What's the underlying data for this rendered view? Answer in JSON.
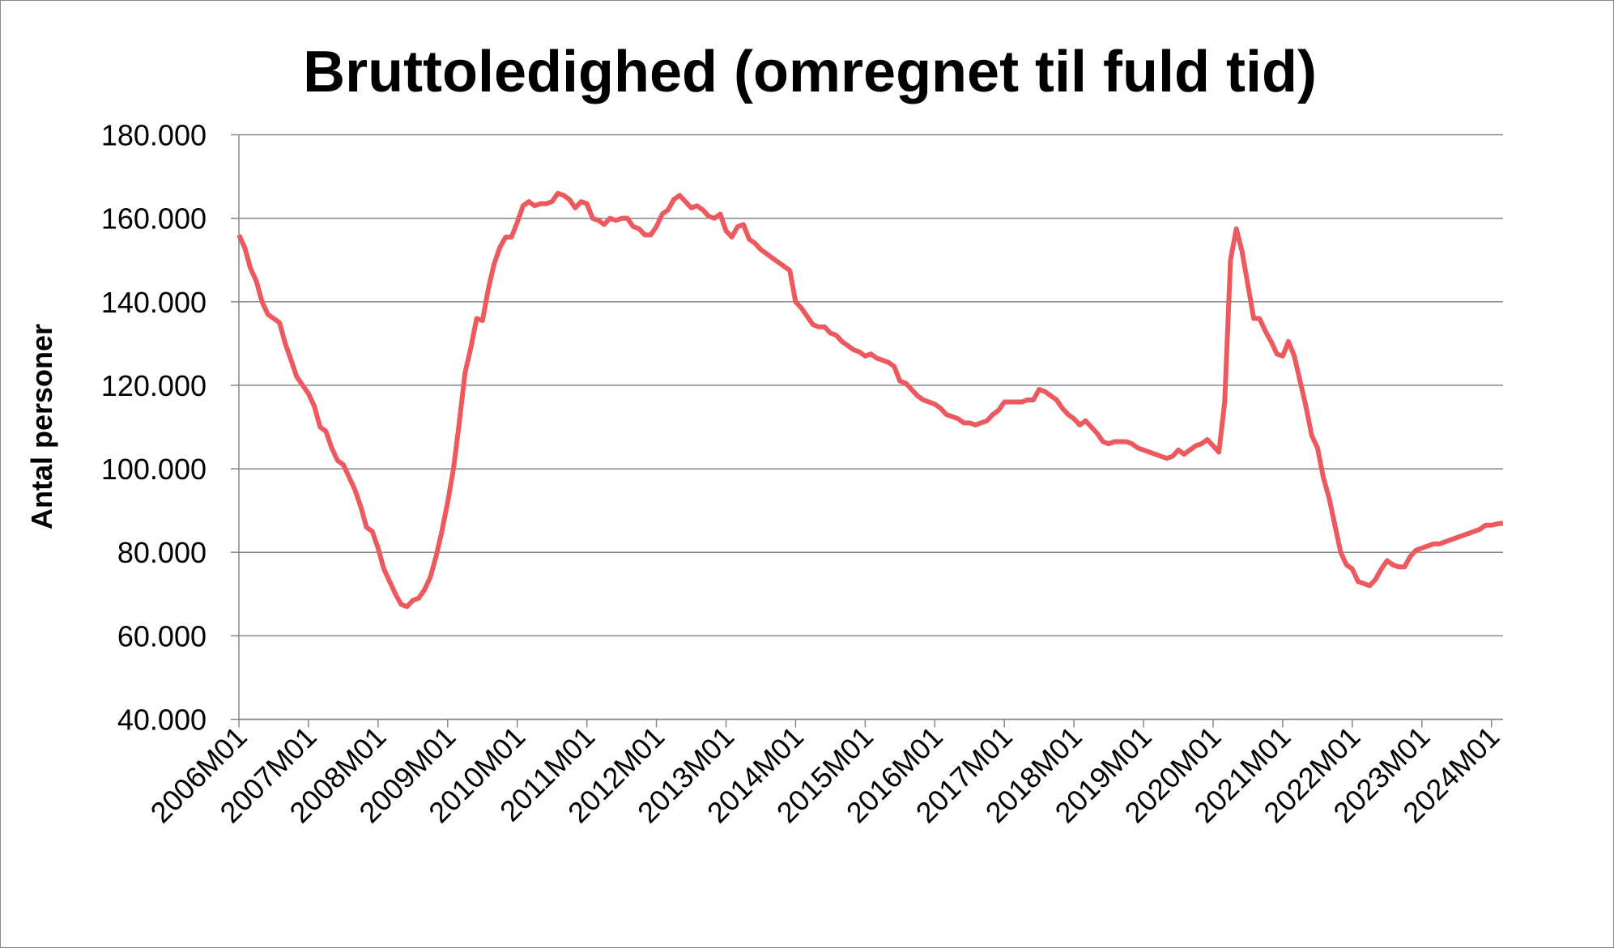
{
  "chart_data": {
    "type": "line",
    "title": "Bruttoledighed (omregnet til fuld tid)",
    "y_label": "Antal personer",
    "categories": [
      "2006M01",
      null,
      null,
      null,
      null,
      null,
      null,
      null,
      null,
      null,
      null,
      null,
      "2007M01",
      null,
      null,
      null,
      null,
      null,
      null,
      null,
      null,
      null,
      null,
      null,
      "2008M01",
      null,
      null,
      null,
      null,
      null,
      null,
      null,
      null,
      null,
      null,
      null,
      "2009M01",
      null,
      null,
      null,
      null,
      null,
      null,
      null,
      null,
      null,
      null,
      null,
      "2010M01",
      null,
      null,
      null,
      null,
      null,
      null,
      null,
      null,
      null,
      null,
      null,
      "2011M01",
      null,
      null,
      null,
      null,
      null,
      null,
      null,
      null,
      null,
      null,
      null,
      "2012M01",
      null,
      null,
      null,
      null,
      null,
      null,
      null,
      null,
      null,
      null,
      null,
      "2013M01",
      null,
      null,
      null,
      null,
      null,
      null,
      null,
      null,
      null,
      null,
      null,
      "2014M01",
      null,
      null,
      null,
      null,
      null,
      null,
      null,
      null,
      null,
      null,
      null,
      "2015M01",
      null,
      null,
      null,
      null,
      null,
      null,
      null,
      null,
      null,
      null,
      null,
      "2016M01",
      null,
      null,
      null,
      null,
      null,
      null,
      null,
      null,
      null,
      null,
      null,
      "2017M01",
      null,
      null,
      null,
      null,
      null,
      null,
      null,
      null,
      null,
      null,
      null,
      "2018M01",
      null,
      null,
      null,
      null,
      null,
      null,
      null,
      null,
      null,
      null,
      null,
      "2019M01",
      null,
      null,
      null,
      null,
      null,
      null,
      null,
      null,
      null,
      null,
      null,
      "2020M01",
      null,
      null,
      null,
      null,
      null,
      null,
      null,
      null,
      null,
      null,
      null,
      "2021M01",
      null,
      null,
      null,
      null,
      null,
      null,
      null,
      null,
      null,
      null,
      null,
      "2022M01",
      null,
      null,
      null,
      null,
      null,
      null,
      null,
      null,
      null,
      null,
      null,
      "2023M01",
      null,
      null,
      null,
      null,
      null,
      null,
      null,
      null,
      null,
      null,
      null,
      "2024M01",
      null,
      null
    ],
    "values": [
      156000,
      153000,
      148000,
      145000,
      140000,
      137000,
      136000,
      135000,
      130000,
      126000,
      122000,
      120000,
      118000,
      115000,
      110000,
      109000,
      105000,
      102000,
      101000,
      98000,
      95000,
      91000,
      86000,
      85000,
      81000,
      76000,
      73000,
      70000,
      67500,
      67000,
      68500,
      69000,
      71000,
      74000,
      79000,
      85000,
      92000,
      100000,
      111000,
      123000,
      129000,
      136000,
      135500,
      143000,
      149000,
      153000,
      155500,
      155500,
      159000,
      163000,
      164000,
      163000,
      163500,
      163500,
      164000,
      166000,
      165500,
      164500,
      162500,
      164000,
      163500,
      160000,
      159500,
      158500,
      160000,
      159500,
      160000,
      160000,
      158000,
      157500,
      156000,
      156000,
      158000,
      161000,
      162000,
      164500,
      165500,
      164000,
      162500,
      163000,
      162000,
      160500,
      160000,
      161000,
      157000,
      155500,
      158000,
      158500,
      155000,
      154000,
      152500,
      151500,
      150500,
      149500,
      148500,
      147500,
      140000,
      138500,
      136500,
      134500,
      134000,
      134000,
      132500,
      132000,
      130500,
      129500,
      128500,
      128000,
      127000,
      127500,
      126500,
      126000,
      125500,
      124500,
      121000,
      120500,
      119000,
      117500,
      116500,
      116000,
      115500,
      114500,
      113000,
      112500,
      112000,
      111000,
      111000,
      110500,
      111000,
      111500,
      113000,
      114000,
      116000,
      116000,
      116000,
      116000,
      116500,
      116500,
      119000,
      118500,
      117500,
      116500,
      114500,
      113000,
      112000,
      110500,
      111500,
      110000,
      108500,
      106500,
      106000,
      106500,
      106500,
      106500,
      106000,
      105000,
      104500,
      104000,
      103500,
      103000,
      102500,
      103000,
      104500,
      103500,
      104500,
      105500,
      106000,
      107000,
      105500,
      104000,
      116000,
      150000,
      157500,
      152000,
      144000,
      136000,
      136000,
      133000,
      130500,
      127500,
      127000,
      130500,
      127000,
      121000,
      115000,
      108000,
      105000,
      98000,
      93000,
      86500,
      80000,
      77000,
      76000,
      73000,
      72500,
      72000,
      73500,
      76000,
      78000,
      77000,
      76500,
      76500,
      79000,
      80500,
      81000,
      81500,
      82000,
      82000,
      82500,
      83000,
      83500,
      84000,
      84500,
      85000,
      85500,
      86500,
      86500,
      86800,
      87000
    ],
    "color": "#ec5a5f",
    "ylim": [
      40000,
      180000
    ],
    "yticks": [
      {
        "value": 40000,
        "label": "40.000"
      },
      {
        "value": 60000,
        "label": "60.000"
      },
      {
        "value": 80000,
        "label": "80.000"
      },
      {
        "value": 100000,
        "label": "100.000"
      },
      {
        "value": 120000,
        "label": "120.000"
      },
      {
        "value": 140000,
        "label": "140.000"
      },
      {
        "value": 160000,
        "label": "160.000"
      },
      {
        "value": 180000,
        "label": "180.000"
      }
    ],
    "grid": true
  }
}
